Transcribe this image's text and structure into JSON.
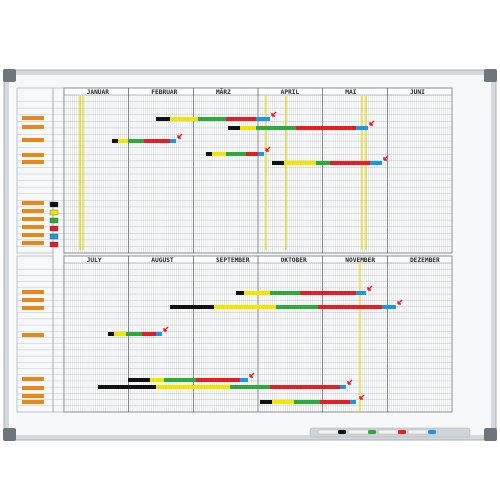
{
  "board": {
    "colors": {
      "black": "#111111",
      "yellow": "#f2e600",
      "green": "#2eaa3c",
      "red": "#e51e25",
      "blue": "#1e96e6",
      "frame": "#c8cdd3",
      "grid": "#9aa3ad",
      "guide": "#e6d200",
      "label": "#e58a1a"
    },
    "top_months": [
      "JANUAR",
      "FEBRUAR",
      "MÄRZ",
      "APRIL",
      "MAI",
      "JUNI"
    ],
    "bottom_months": [
      "JULY",
      "AUGUST",
      "SEPTEMBER",
      "OKTOBER",
      "NOVEMBER",
      "DEZEMBER"
    ],
    "legend_colors": [
      "black",
      "yellow",
      "green",
      "red",
      "blue",
      "red"
    ],
    "pen_colors": [
      "black",
      "green",
      "red",
      "blue"
    ]
  }
}
